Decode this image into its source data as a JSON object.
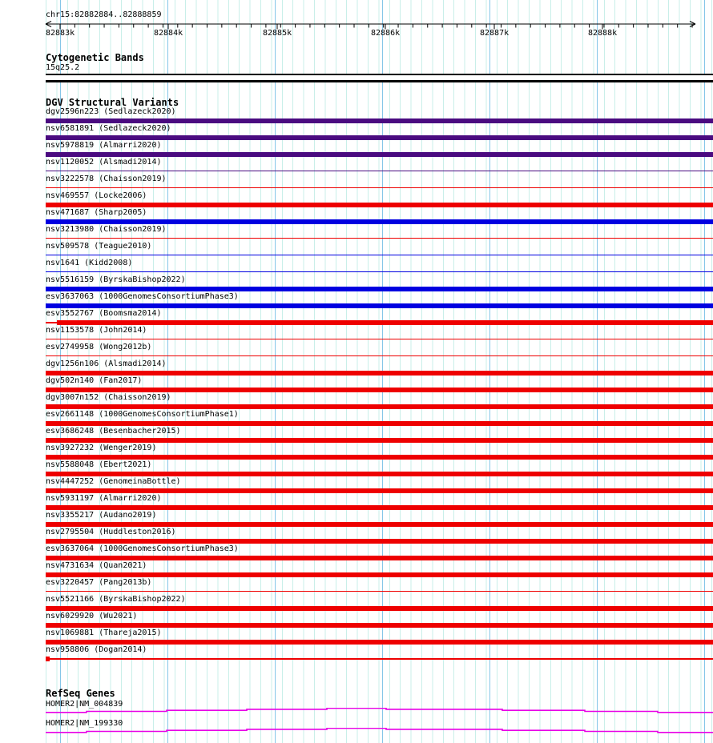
{
  "colors": {
    "red": "#ee0000",
    "blue": "#0000e0",
    "purple": "#4a0b80",
    "magenta": "#e800e6",
    "grid_minor": "#c9efe9",
    "grid_major": "#85c6e8",
    "ruler": "#000000",
    "band_fill": "#ffffff",
    "band_border": "#000000"
  },
  "header": {
    "region_label": "chr15:82882884..82888859",
    "ticks": [
      "82883k",
      "82884k",
      "82885k",
      "82886k",
      "82887k",
      "82888k"
    ]
  },
  "cytobands": {
    "title": "Cytogenetic Bands",
    "band_label": "15q25.2"
  },
  "dgv": {
    "title": "DGV Structural Variants",
    "variants": [
      {
        "label": "dgv2596n223 (Sedlazeck2020)",
        "color": "purple",
        "style": "thick"
      },
      {
        "label": "nsv6581891 (Sedlazeck2020)",
        "color": "purple",
        "style": "thick"
      },
      {
        "label": "nsv5978819 (Almarri2020)",
        "color": "purple",
        "style": "thick"
      },
      {
        "label": "nsv1120052 (Alsmadi2014)",
        "color": "purple",
        "style": "thin"
      },
      {
        "label": "nsv3222578 (Chaisson2019)",
        "color": "red",
        "style": "thin"
      },
      {
        "label": "nsv469557 (Locke2006)",
        "color": "red",
        "style": "thick"
      },
      {
        "label": "nsv471687 (Sharp2005)",
        "color": "blue",
        "style": "thick"
      },
      {
        "label": "nsv3213980 (Chaisson2019)",
        "color": "red",
        "style": "thin"
      },
      {
        "label": "nsv509578 (Teague2010)",
        "color": "blue",
        "style": "thin"
      },
      {
        "label": "nsv1641 (Kidd2008)",
        "color": "blue",
        "style": "thin"
      },
      {
        "label": "nsv5516159 (ByrskaBishop2022)",
        "color": "blue",
        "style": "thick"
      },
      {
        "label": "esv3637063 (1000GenomesConsortiumPhase3)",
        "color": "blue",
        "style": "thick"
      },
      {
        "label": "esv3552767 (Boomsma2014)",
        "color": "red",
        "style": "lead-thin-thick"
      },
      {
        "label": "nsv1153578 (John2014)",
        "color": "red",
        "style": "thin"
      },
      {
        "label": "esv2749958 (Wong2012b)",
        "color": "red",
        "style": "thin"
      },
      {
        "label": "dgv1256n106 (Alsmadi2014)",
        "color": "red",
        "style": "thick"
      },
      {
        "label": "dgv502n140 (Fan2017)",
        "color": "red",
        "style": "thick"
      },
      {
        "label": "dgv3007n152 (Chaisson2019)",
        "color": "red",
        "style": "thick"
      },
      {
        "label": "esv2661148 (1000GenomesConsortiumPhase1)",
        "color": "red",
        "style": "thick"
      },
      {
        "label": "esv3686248 (Besenbacher2015)",
        "color": "red",
        "style": "thick"
      },
      {
        "label": "nsv3927232 (Wenger2019)",
        "color": "red",
        "style": "thick"
      },
      {
        "label": "nsv5588048 (Ebert2021)",
        "color": "red",
        "style": "thick"
      },
      {
        "label": "nsv4447252 (GenomeinaBottle)",
        "color": "red",
        "style": "thick"
      },
      {
        "label": "nsv5931197 (Almarri2020)",
        "color": "red",
        "style": "thick"
      },
      {
        "label": "nsv3355217 (Audano2019)",
        "color": "red",
        "style": "thick"
      },
      {
        "label": "nsv2795504 (Huddleston2016)",
        "color": "red",
        "style": "thick"
      },
      {
        "label": "esv3637064 (1000GenomesConsortiumPhase3)",
        "color": "red",
        "style": "thick"
      },
      {
        "label": "nsv4731634 (Quan2021)",
        "color": "red",
        "style": "thick"
      },
      {
        "label": "esv3220457 (Pang2013b)",
        "color": "red",
        "style": "thin"
      },
      {
        "label": "nsv5521166 (ByrskaBishop2022)",
        "color": "red",
        "style": "thick"
      },
      {
        "label": "nsv6029920 (Wu2021)",
        "color": "red",
        "style": "thick"
      },
      {
        "label": "nsv1069881 (Thareja2015)",
        "color": "red",
        "style": "thick"
      },
      {
        "label": "nsv958806 (Dogan2014)",
        "color": "red",
        "style": "box-thin"
      }
    ]
  },
  "refseq": {
    "title": "RefSeq Genes",
    "genes": [
      {
        "label": "HOMER2|NM_004839"
      },
      {
        "label": "HOMER2|NM_199330"
      }
    ]
  }
}
